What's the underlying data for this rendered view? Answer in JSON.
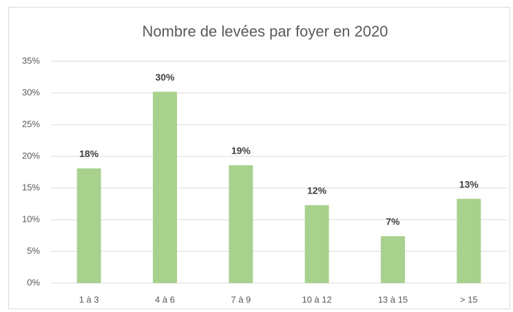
{
  "chart_data": {
    "type": "bar",
    "title": "Nombre de levées par foyer en 2020",
    "categories": [
      "1 à 3",
      "4 à 6",
      "7 à 9",
      "10 à 12",
      "13 à 15",
      "> 15"
    ],
    "values": [
      18.1,
      30.2,
      18.6,
      12.3,
      7.4,
      13.3
    ],
    "value_labels": [
      "18%",
      "30%",
      "19%",
      "12%",
      "7%",
      "13%"
    ],
    "color": "#a9d18e",
    "ylim": [
      0,
      35
    ],
    "yticks": [
      {
        "value": 0,
        "label": "0%"
      },
      {
        "value": 5,
        "label": "5%"
      },
      {
        "value": 10,
        "label": "10%"
      },
      {
        "value": 15,
        "label": "15%"
      },
      {
        "value": 20,
        "label": "20%"
      },
      {
        "value": 25,
        "label": "25%"
      },
      {
        "value": 30,
        "label": "30%"
      },
      {
        "value": 35,
        "label": "35%"
      }
    ],
    "grid": true
  }
}
